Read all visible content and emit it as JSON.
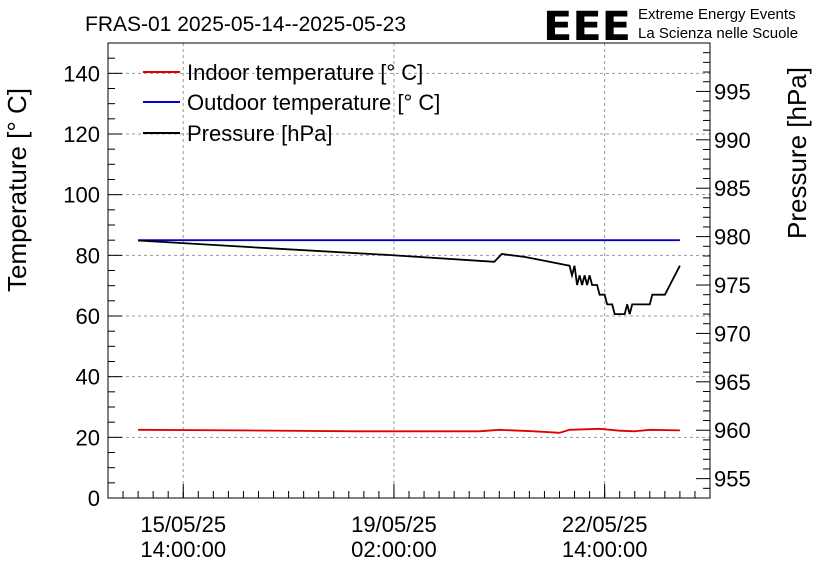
{
  "header": {
    "title": "FRAS-01 2025-05-14--2025-05-23",
    "logo_text": "EEE",
    "logo_line1": "Extreme Energy Events",
    "logo_line2": "La Scienza nelle Scuole",
    "logo_color": "#1a1aee"
  },
  "chart_data": {
    "type": "line",
    "title": "FRAS-01 2025-05-14--2025-05-23",
    "ylabel": "Temperature [° C]",
    "y2label": "Pressure [hPa]",
    "ylim": [
      0,
      150
    ],
    "y2lim": [
      953,
      1000
    ],
    "xlim": [
      "2025-05-14 08:00",
      "2025-05-24 08:00"
    ],
    "grid": true,
    "legend_position": "top-left",
    "y_ticks": [
      0,
      20,
      40,
      60,
      80,
      100,
      120,
      140
    ],
    "y2_ticks": [
      955,
      960,
      965,
      970,
      975,
      980,
      985,
      990,
      995
    ],
    "x_ticks": [
      {
        "t": "2025-05-15 14:00",
        "line1": "15/05/25",
        "line2": "14:00:00"
      },
      {
        "t": "2025-05-19 02:00",
        "line1": "19/05/25",
        "line2": "02:00:00"
      },
      {
        "t": "2025-05-22 14:00",
        "line1": "22/05/25",
        "line2": "14:00:00"
      }
    ],
    "series": [
      {
        "name": "Indoor temperature [° C]",
        "color": "#e00000",
        "axis": "left",
        "points": [
          [
            "2025-05-14 20:00",
            22.5
          ],
          [
            "2025-05-16 12:00",
            22.3
          ],
          [
            "2025-05-18 12:00",
            22.0
          ],
          [
            "2025-05-20 12:00",
            22.0
          ],
          [
            "2025-05-20 20:00",
            22.5
          ],
          [
            "2025-05-21 10:00",
            22.0
          ],
          [
            "2025-05-21 20:00",
            21.5
          ],
          [
            "2025-05-22 00:00",
            22.5
          ],
          [
            "2025-05-22 12:00",
            22.8
          ],
          [
            "2025-05-22 20:00",
            22.2
          ],
          [
            "2025-05-23 02:00",
            22.0
          ],
          [
            "2025-05-23 08:00",
            22.5
          ],
          [
            "2025-05-23 20:00",
            22.3
          ]
        ]
      },
      {
        "name": "Outdoor temperature [° C]",
        "color": "#0000d0",
        "axis": "left",
        "points": [
          [
            "2025-05-14 20:00",
            85.0
          ],
          [
            "2025-05-23 20:00",
            85.0
          ]
        ]
      },
      {
        "name": "Pressure [hPa]",
        "color": "#000000",
        "axis": "right",
        "points": [
          [
            "2025-05-14 20:00",
            979.6
          ],
          [
            "2025-05-17 00:00",
            978.8
          ],
          [
            "2025-05-19 00:00",
            978.1
          ],
          [
            "2025-05-20 18:00",
            977.4
          ],
          [
            "2025-05-20 21:00",
            978.2
          ],
          [
            "2025-05-21 06:00",
            977.9
          ],
          [
            "2025-05-21 14:00",
            977.5
          ],
          [
            "2025-05-21 22:00",
            977.1
          ],
          [
            "2025-05-22 00:00",
            977.0
          ],
          [
            "2025-05-22 01:00",
            976.0
          ],
          [
            "2025-05-22 02:00",
            977.0
          ],
          [
            "2025-05-22 03:00",
            975.0
          ],
          [
            "2025-05-22 04:00",
            976.0
          ],
          [
            "2025-05-22 05:00",
            975.0
          ],
          [
            "2025-05-22 06:00",
            976.0
          ],
          [
            "2025-05-22 07:00",
            975.0
          ],
          [
            "2025-05-22 08:00",
            976.0
          ],
          [
            "2025-05-22 09:00",
            975.0
          ],
          [
            "2025-05-22 11:00",
            975.0
          ],
          [
            "2025-05-22 12:00",
            974.0
          ],
          [
            "2025-05-22 14:00",
            974.0
          ],
          [
            "2025-05-22 15:00",
            973.0
          ],
          [
            "2025-05-22 17:00",
            973.0
          ],
          [
            "2025-05-22 18:00",
            972.0
          ],
          [
            "2025-05-22 22:00",
            972.0
          ],
          [
            "2025-05-22 23:00",
            973.0
          ],
          [
            "2025-05-23 00:00",
            972.0
          ],
          [
            "2025-05-23 01:00",
            973.0
          ],
          [
            "2025-05-23 08:00",
            973.0
          ],
          [
            "2025-05-23 09:00",
            974.0
          ],
          [
            "2025-05-23 14:00",
            974.0
          ],
          [
            "2025-05-23 16:00",
            975.0
          ],
          [
            "2025-05-23 18:00",
            976.0
          ],
          [
            "2025-05-23 20:00",
            977.0
          ]
        ]
      }
    ]
  }
}
